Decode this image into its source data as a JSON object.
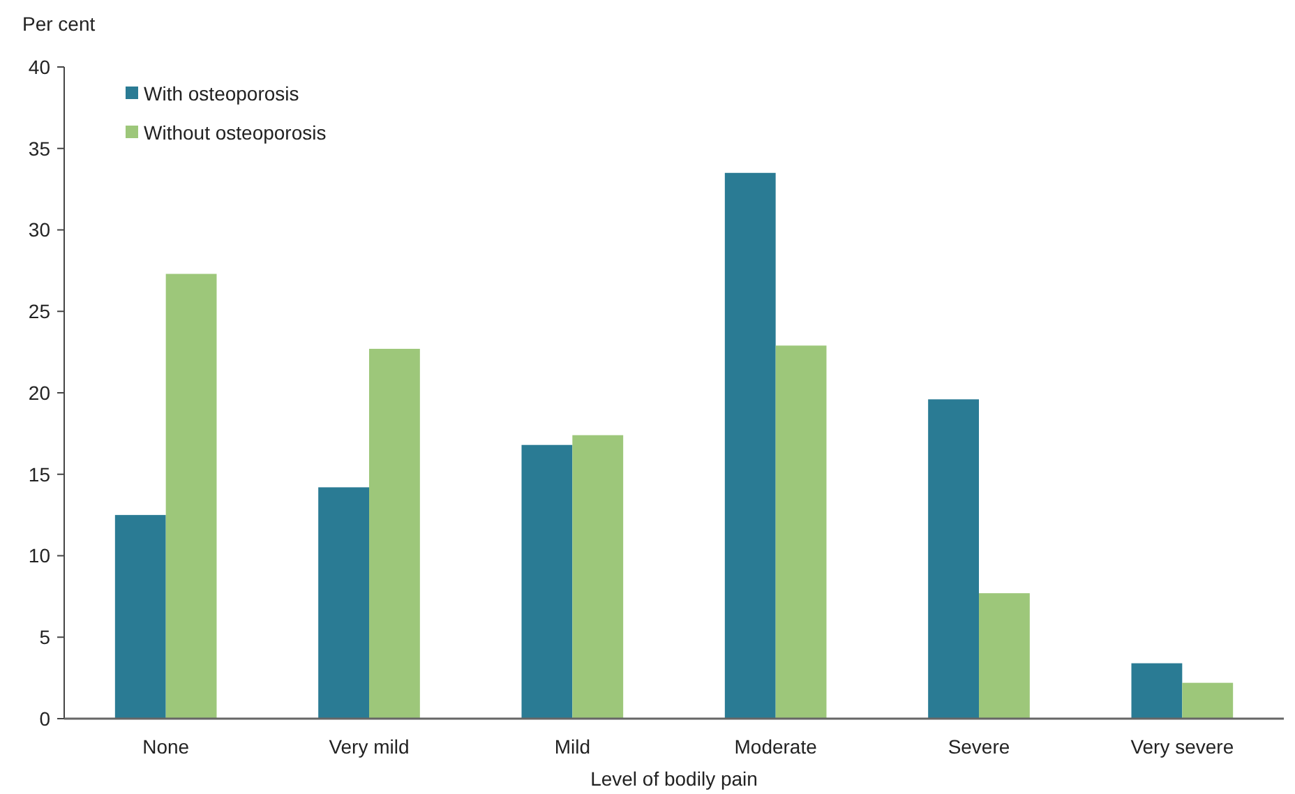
{
  "chart_data": {
    "type": "bar",
    "ylabel": "Per cent",
    "xlabel": "Level of bodily pain",
    "categories": [
      "None",
      "Very mild",
      "Mild",
      "Moderate",
      "Severe",
      "Very severe"
    ],
    "series": [
      {
        "name": "With osteoporosis",
        "color": "#2a7b94",
        "values": [
          12.5,
          14.2,
          16.8,
          33.5,
          19.6,
          3.4
        ]
      },
      {
        "name": "Without osteoporosis",
        "color": "#9dc77a",
        "values": [
          27.3,
          22.7,
          17.4,
          22.9,
          7.7,
          2.2
        ]
      }
    ],
    "ylim": [
      0,
      40
    ],
    "yticks": [
      0,
      5,
      10,
      15,
      20,
      25,
      30,
      35,
      40
    ],
    "grid": false,
    "legend": "top left"
  }
}
